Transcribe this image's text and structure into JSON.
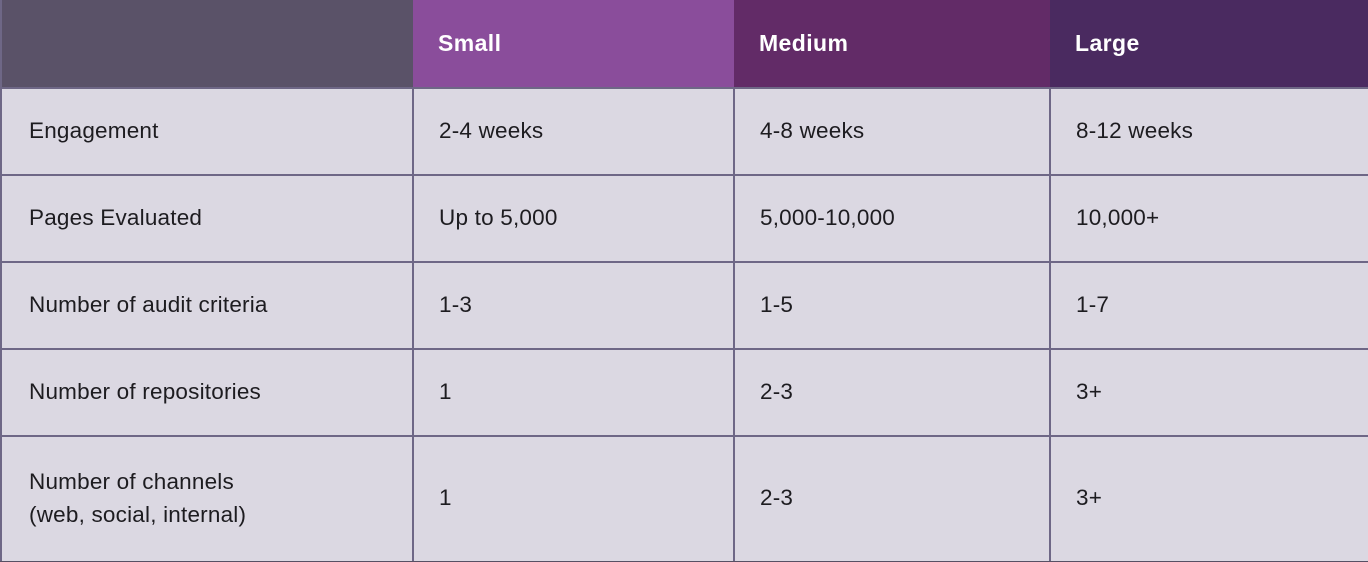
{
  "chart_data": {
    "type": "table",
    "columns": [
      "",
      "Small",
      "Medium",
      "Large"
    ],
    "rows": [
      [
        "Engagement",
        "2-4 weeks",
        "4-8 weeks",
        "8-12 weeks"
      ],
      [
        "Pages Evaluated",
        "Up to 5,000",
        "5,000-10,000",
        "10,000+"
      ],
      [
        "Number of audit criteria",
        "1-3",
        "1-5",
        "1-7"
      ],
      [
        "Number of repositories",
        "1",
        "2-3",
        "3+"
      ],
      [
        "Number of channels\n(web, social, internal)",
        "1",
        "2-3",
        "3+"
      ]
    ],
    "layout": {
      "header_position": "top",
      "row_label_column": true,
      "grid": "on"
    }
  },
  "colors": {
    "header_corner_bg": "#5a5268",
    "header_small_bg": "#8a4d9b",
    "header_medium_bg": "#622b67",
    "header_large_bg": "#4a2a60",
    "header_text": "#ffffff",
    "cell_bg": "#dbd8e2",
    "grid_border": "#6e6786",
    "body_text": "#1d1c20"
  }
}
